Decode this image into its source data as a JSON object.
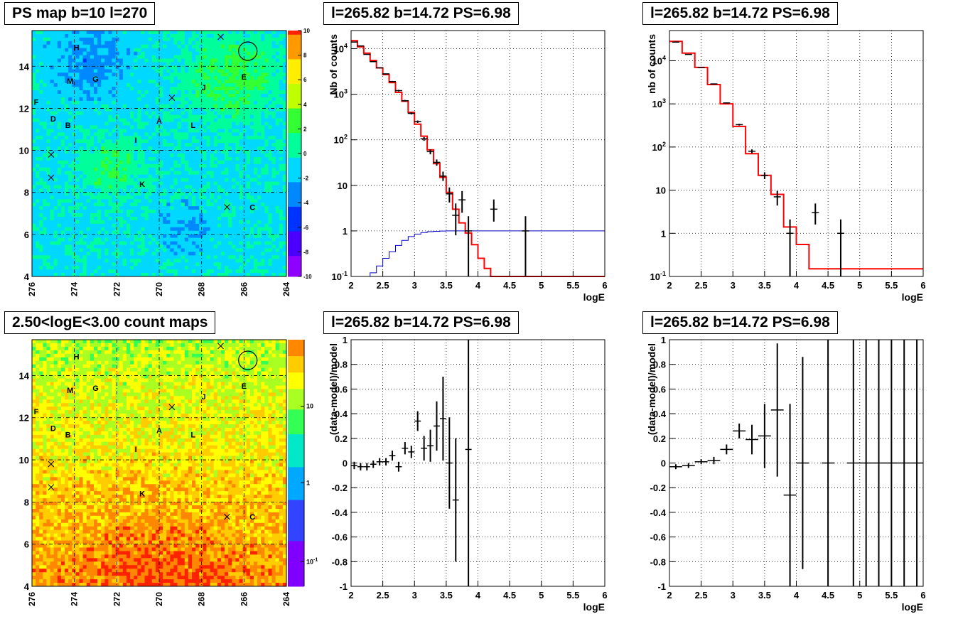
{
  "panels": {
    "ps_map": {
      "title": "PS map b=10 l=270"
    },
    "spec_a": {
      "title": "l=265.82 b=14.72 PS=6.98"
    },
    "spec_b": {
      "title": "l=265.82 b=14.72 PS=6.98"
    },
    "count_map": {
      "title": "2.50<logE<3.00 count maps"
    },
    "res_a": {
      "title": "l=265.82 b=14.72 PS=6.98"
    },
    "res_b": {
      "title": "l=265.82 b=14.72 PS=6.98"
    }
  },
  "chart_data": [
    {
      "id": "ps_map",
      "type": "heatmap",
      "title": "PS map b=10 l=270",
      "x_ticks": [
        "276",
        "274",
        "272",
        "270",
        "268",
        "266",
        "264"
      ],
      "y_ticks": [
        "4",
        "6",
        "8",
        "10",
        "12",
        "14"
      ],
      "xlim": [
        276,
        264
      ],
      "ylim": [
        4,
        15.7
      ],
      "colorbar": {
        "min": -10,
        "max": 10,
        "ticks": [
          "10",
          "8",
          "6",
          "4",
          "2",
          "0",
          "-2",
          "-4",
          "-6",
          "-8",
          "-10"
        ]
      },
      "grid": true,
      "labels": [
        {
          "text": "H",
          "l": 273.9,
          "b": 14.9
        },
        {
          "text": "M",
          "l": 274.2,
          "b": 13.3
        },
        {
          "text": "G",
          "l": 273.0,
          "b": 13.4
        },
        {
          "text": "F",
          "l": 275.8,
          "b": 12.3
        },
        {
          "text": "D",
          "l": 275.0,
          "b": 11.5
        },
        {
          "text": "B",
          "l": 274.3,
          "b": 11.2
        },
        {
          "text": "A",
          "l": 270.0,
          "b": 11.4
        },
        {
          "text": "L",
          "l": 268.4,
          "b": 11.2
        },
        {
          "text": "J",
          "l": 267.9,
          "b": 13.0
        },
        {
          "text": "E",
          "l": 266.0,
          "b": 13.5
        },
        {
          "text": "I",
          "l": 271.1,
          "b": 10.5
        },
        {
          "text": "K",
          "l": 270.8,
          "b": 8.4
        },
        {
          "text": "C",
          "l": 265.6,
          "b": 7.3
        }
      ],
      "crosses": [
        {
          "l": 267.1,
          "b": 15.4
        },
        {
          "l": 269.4,
          "b": 12.5
        },
        {
          "l": 275.1,
          "b": 9.8
        },
        {
          "l": 275.1,
          "b": 8.7
        },
        {
          "l": 266.8,
          "b": 7.3
        }
      ],
      "circle": {
        "l": 265.82,
        "b": 14.72
      }
    },
    {
      "id": "spec_a",
      "type": "line",
      "title": "l=265.82 b=14.72 PS=6.98",
      "xlabel": "logE",
      "ylabel": "Nb of counts",
      "xlim": [
        2,
        6
      ],
      "ylim": [
        0.1,
        25000
      ],
      "yscale": "log",
      "x_ticks": [
        "2",
        "2.5",
        "3",
        "3.5",
        "4",
        "4.5",
        "5",
        "5.5",
        "6"
      ],
      "y_ticks": [
        "10^-1",
        "1",
        "10",
        "10^2",
        "10^3",
        "10^4"
      ],
      "grid": true,
      "series": [
        {
          "kind": "step",
          "color": "#ff0000",
          "bin_width": 0.1,
          "x": [
            2.0,
            2.1,
            2.2,
            2.3,
            2.4,
            2.5,
            2.6,
            2.7,
            2.8,
            2.9,
            3.0,
            3.1,
            3.2,
            3.3,
            3.4,
            3.5,
            3.6,
            3.7,
            3.8,
            3.9,
            4.0,
            4.1,
            4.2,
            4.3
          ],
          "y": [
            15000,
            11000,
            8000,
            5500,
            3800,
            2700,
            1800,
            1100,
            700,
            400,
            220,
            120,
            60,
            30,
            15,
            7,
            3,
            1.5,
            0.9,
            0.5,
            0.25,
            0.15,
            0.1,
            0.08
          ]
        },
        {
          "kind": "step",
          "color": "#0000cc",
          "bin_width": 0.1,
          "x": [
            2.0,
            2.1,
            2.2,
            2.3,
            2.4,
            2.5,
            2.6,
            2.7,
            2.8,
            2.9,
            3.0,
            3.1,
            3.2,
            3.3,
            3.4,
            3.5,
            3.6,
            3.7,
            3.8,
            3.9
          ],
          "y": [
            0.05,
            0.07,
            0.09,
            0.12,
            0.17,
            0.25,
            0.35,
            0.48,
            0.62,
            0.75,
            0.85,
            0.92,
            0.96,
            0.98,
            0.99,
            1,
            1,
            1,
            1,
            1
          ]
        },
        {
          "kind": "points",
          "color": "#000000",
          "x": [
            2.05,
            2.15,
            2.25,
            2.35,
            2.45,
            2.55,
            2.65,
            2.75,
            2.85,
            2.95,
            3.05,
            3.15,
            3.25,
            3.35,
            3.45,
            3.55,
            3.65,
            3.75,
            3.85,
            4.25,
            4.75
          ],
          "y": [
            14000,
            11500,
            7500,
            5200,
            3800,
            2800,
            1900,
            1200,
            720,
            380,
            250,
            105,
            55,
            32,
            16,
            6.5,
            2.2,
            4.8,
            1,
            3,
            1
          ],
          "lo": [
            13800,
            11300,
            7350,
            5100,
            3700,
            2740,
            1840,
            1150,
            690,
            360,
            235,
            95,
            48,
            27,
            12.5,
            4.2,
            0.8,
            2.5,
            0.05,
            1.6,
            0.05
          ],
          "hi": [
            14200,
            11700,
            7650,
            5300,
            3900,
            2860,
            1960,
            1250,
            750,
            400,
            265,
            115,
            62,
            37,
            20,
            9,
            4,
            7.5,
            2.1,
            4.9,
            2.1
          ]
        }
      ]
    },
    {
      "id": "spec_b",
      "type": "line",
      "title": "l=265.82 b=14.72 PS=6.98",
      "xlabel": "logE",
      "ylabel": "nb of counts",
      "xlim": [
        2,
        6
      ],
      "ylim": [
        0.1,
        50000
      ],
      "yscale": "log",
      "x_ticks": [
        "2",
        "2.5",
        "3",
        "3.5",
        "4",
        "4.5",
        "5",
        "5.5",
        "6"
      ],
      "y_ticks": [
        "10^-1",
        "1",
        "10",
        "10^2",
        "10^3",
        "10^4"
      ],
      "grid": true,
      "series": [
        {
          "kind": "step",
          "color": "#ff0000",
          "bin_width": 0.2,
          "x": [
            2.0,
            2.2,
            2.4,
            2.6,
            2.8,
            3.0,
            3.2,
            3.4,
            3.6,
            3.8,
            4.0,
            4.2
          ],
          "y": [
            28000,
            15000,
            7000,
            2800,
            1000,
            300,
            70,
            22,
            8,
            1.4,
            0.55,
            0.15
          ]
        },
        {
          "kind": "points",
          "color": "#000000",
          "x": [
            2.1,
            2.3,
            2.5,
            2.7,
            2.9,
            3.1,
            3.3,
            3.5,
            3.7,
            3.9,
            4.3,
            4.7
          ],
          "y": [
            27000,
            14000,
            7000,
            2900,
            1050,
            330,
            80,
            22,
            7,
            1,
            3,
            1
          ],
          "lo": [
            26700,
            13800,
            6900,
            2850,
            1020,
            315,
            72,
            18,
            4.4,
            0.05,
            1.6,
            0.05
          ],
          "hi": [
            27300,
            14200,
            7100,
            2950,
            1080,
            345,
            88,
            26,
            9.6,
            2.1,
            4.9,
            2.1
          ]
        }
      ]
    },
    {
      "id": "count_map",
      "type": "heatmap",
      "title": "2.50<logE<3.00 count maps",
      "x_ticks": [
        "276",
        "274",
        "272",
        "270",
        "268",
        "266",
        "264"
      ],
      "y_ticks": [
        "4",
        "6",
        "8",
        "10",
        "12",
        "14"
      ],
      "xlim": [
        276,
        264
      ],
      "ylim": [
        4,
        15.7
      ],
      "colorbar": {
        "scale": "log",
        "ticks": [
          "10",
          "1",
          "10^-1"
        ]
      },
      "grid": true
    },
    {
      "id": "res_a",
      "type": "scatter",
      "title": "l=265.82 b=14.72 PS=6.98",
      "xlabel": "logE",
      "ylabel": "(data-model)/model",
      "xlim": [
        2,
        6
      ],
      "ylim": [
        -1,
        1
      ],
      "x_ticks": [
        "2",
        "2.5",
        "3",
        "3.5",
        "4",
        "4.5",
        "5",
        "5.5",
        "6"
      ],
      "y_ticks": [
        "-1",
        "-0.8",
        "-0.6",
        "-0.4",
        "-0.2",
        "0",
        "0.2",
        "0.4",
        "0.6",
        "0.8",
        "1"
      ],
      "grid": true,
      "bin_width": 0.1,
      "x": [
        2.05,
        2.15,
        2.25,
        2.35,
        2.45,
        2.55,
        2.65,
        2.75,
        2.85,
        2.95,
        3.05,
        3.15,
        3.25,
        3.35,
        3.45,
        3.55,
        3.65,
        3.85
      ],
      "y": [
        -0.02,
        -0.03,
        -0.03,
        -0.01,
        0.01,
        0.01,
        0.06,
        -0.03,
        0.12,
        0.09,
        0.34,
        0.12,
        0.14,
        0.3,
        0.36,
        0.0,
        -0.3,
        0.11
      ],
      "err": [
        0.03,
        0.03,
        0.03,
        0.03,
        0.03,
        0.03,
        0.04,
        0.04,
        0.05,
        0.05,
        0.08,
        0.1,
        0.13,
        0.2,
        0.34,
        0.37,
        0.5,
        1.2
      ]
    },
    {
      "id": "res_b",
      "type": "scatter",
      "title": "l=265.82 b=14.72 PS=6.98",
      "xlabel": "logE",
      "ylabel": "(data-model)/model",
      "xlim": [
        2,
        6
      ],
      "ylim": [
        -1,
        1
      ],
      "x_ticks": [
        "2",
        "2.5",
        "3",
        "3.5",
        "4",
        "4.5",
        "5",
        "5.5",
        "6"
      ],
      "y_ticks": [
        "-1",
        "-0.8",
        "-0.6",
        "-0.4",
        "-0.2",
        "0",
        "0.2",
        "0.4",
        "0.6",
        "0.8",
        "1"
      ],
      "grid": true,
      "bin_width": 0.2,
      "x": [
        2.1,
        2.3,
        2.5,
        2.7,
        2.9,
        3.1,
        3.3,
        3.5,
        3.7,
        3.9,
        4.1,
        4.5,
        4.9,
        5.1,
        5.3,
        5.5,
        5.7,
        5.9
      ],
      "y": [
        -0.03,
        -0.02,
        0.01,
        0.02,
        0.11,
        0.26,
        0.19,
        0.22,
        0.43,
        -0.26,
        0.0,
        0.0,
        0.0,
        0.0,
        0.0,
        0.0,
        0.0,
        0.0
      ],
      "err": [
        0.02,
        0.02,
        0.02,
        0.03,
        0.04,
        0.06,
        0.12,
        0.26,
        0.54,
        0.74,
        0.86,
        1.2,
        1.2,
        1.2,
        1.2,
        1.2,
        1.2,
        1.2
      ]
    }
  ]
}
